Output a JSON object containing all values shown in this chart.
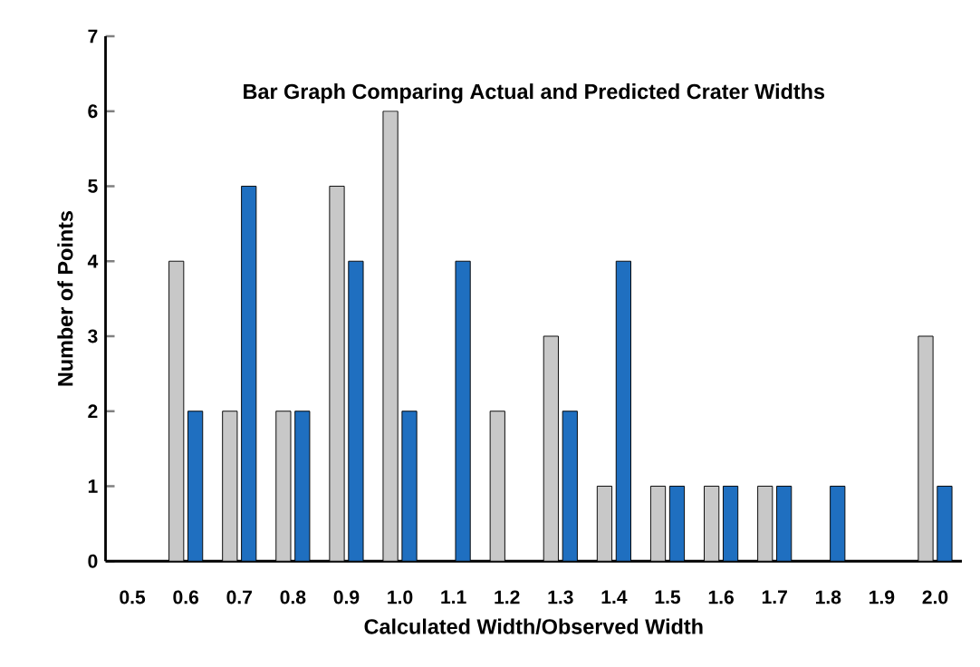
{
  "chart_data": {
    "type": "bar",
    "title": "Bar Graph Comparing Actual and Predicted Crater Widths",
    "xlabel": "Calculated Width/Observed Width",
    "ylabel": "Number of Points",
    "categories": [
      "0.5",
      "0.6",
      "0.7",
      "0.8",
      "0.9",
      "1.0",
      "1.1",
      "1.2",
      "1.3",
      "1.4",
      "1.5",
      "1.6",
      "1.7",
      "1.8",
      "1.9",
      "2.0"
    ],
    "series": [
      {
        "color": "#c8c8c8",
        "values": [
          0,
          4,
          2,
          2,
          5,
          6,
          0,
          2,
          3,
          1,
          1,
          1,
          1,
          0,
          0,
          3
        ]
      },
      {
        "color": "#1f6fc0",
        "values": [
          0,
          2,
          5,
          2,
          4,
          2,
          4,
          0,
          2,
          4,
          1,
          1,
          1,
          1,
          0,
          1
        ]
      }
    ],
    "ylim": [
      0,
      7
    ],
    "yticks": [
      0,
      1,
      2,
      3,
      4,
      5,
      6,
      7
    ],
    "grid": false
  }
}
